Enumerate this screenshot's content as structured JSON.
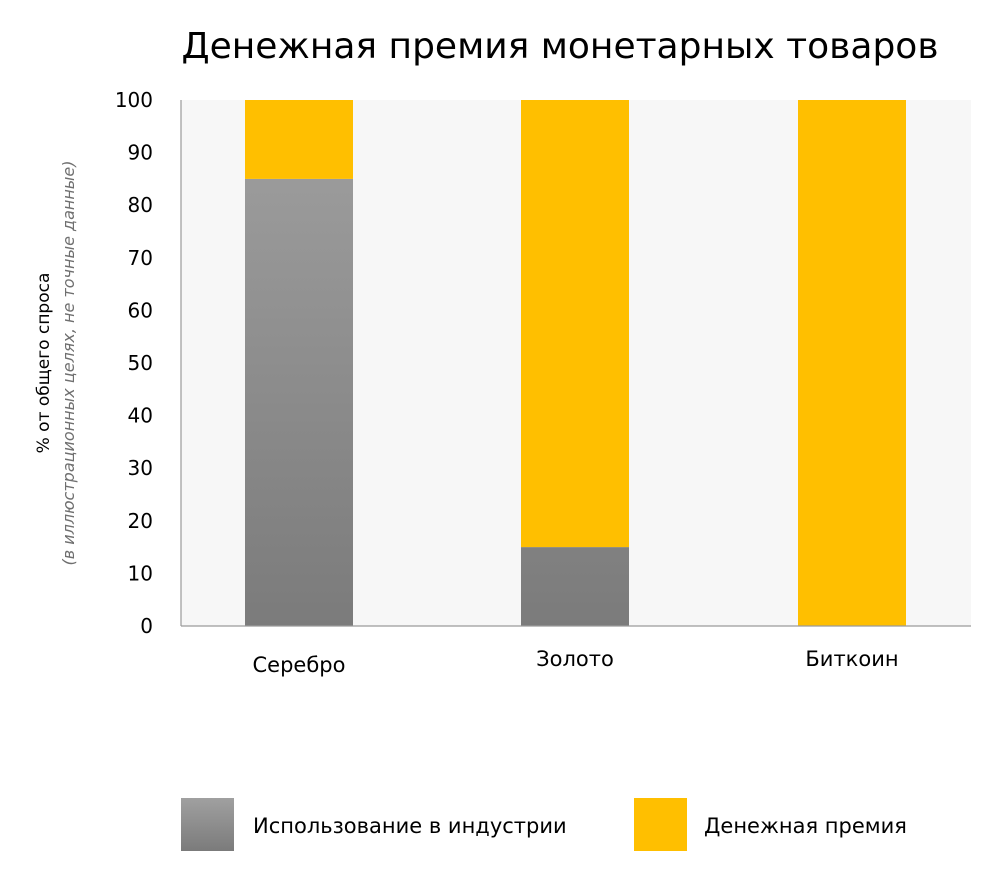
{
  "chart_data": {
    "type": "bar",
    "stacked": true,
    "title": "Денежная премия монетарных товаров",
    "ylabel": "% от общего спроса",
    "ylabel_note": "(в иллюстрационных целях, не точные данные)",
    "xlabel": "",
    "ylim": [
      0,
      100
    ],
    "yticks": [
      "0",
      "10",
      "20",
      "30",
      "40",
      "50",
      "60",
      "70",
      "80",
      "90",
      "100"
    ],
    "categories": [
      "Серебро",
      "Золото",
      "Биткоин"
    ],
    "series": [
      {
        "name": "Использование в индустрии",
        "values": [
          85,
          15,
          0
        ]
      },
      {
        "name": "Денежная премия",
        "values": [
          15,
          85,
          100
        ]
      }
    ],
    "grid": false,
    "legend_position": "bottom"
  },
  "colors": {
    "industry_top": "#a0a0a0",
    "industry_bottom": "#7b7b7b",
    "premium": "#ffbf00",
    "plot_background": "#f7f7f7",
    "axis": "#9a9a9a"
  }
}
